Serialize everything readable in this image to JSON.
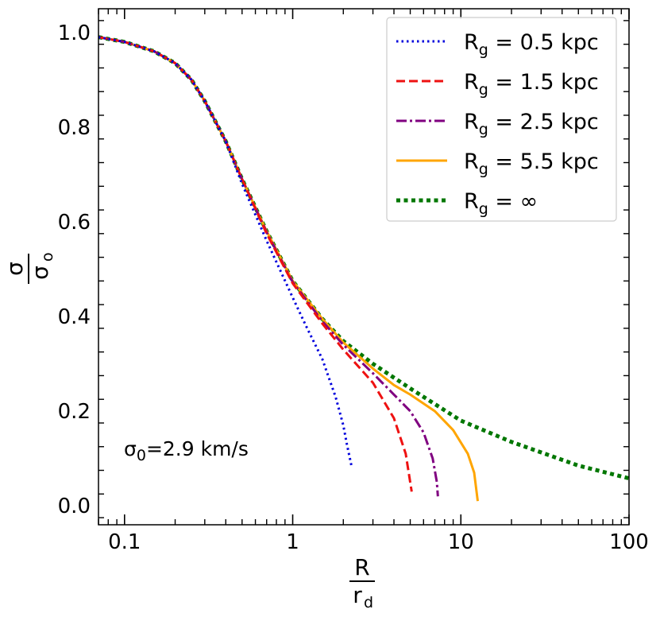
{
  "chart_data": {
    "type": "line",
    "title": "",
    "xscale": "log",
    "xlim": [
      0.07,
      100
    ],
    "ylim": [
      -0.04,
      1.05
    ],
    "xlabel": {
      "num": "R",
      "den": "r",
      "den_sub": "d"
    },
    "ylabel": {
      "num": "σ",
      "den": "σ",
      "den_sub": "o"
    },
    "xticks": [
      {
        "value": 0.1,
        "label": "0.1"
      },
      {
        "value": 1,
        "label": "1"
      },
      {
        "value": 10,
        "label": "10"
      },
      {
        "value": 100,
        "label": "100"
      }
    ],
    "yticks": [
      {
        "value": 0.0,
        "label": "0.0"
      },
      {
        "value": 0.2,
        "label": "0.2"
      },
      {
        "value": 0.4,
        "label": "0.4"
      },
      {
        "value": 0.6,
        "label": "0.6"
      },
      {
        "value": 0.8,
        "label": "0.8"
      },
      {
        "value": 1.0,
        "label": "1.0"
      }
    ],
    "legend_position": "top-right",
    "annotation": {
      "symbol": "σ",
      "sub": "0",
      "text": "=2.9 km/s"
    },
    "series": [
      {
        "name": "R_g = 0.5 kpc",
        "legend": {
          "main": "R",
          "sub": "g",
          "rest": " = 0.5 kpc"
        },
        "color": "#0000dd",
        "style": "dotted",
        "points": [
          [
            0.07,
            0.99
          ],
          [
            0.1,
            0.98
          ],
          [
            0.15,
            0.96
          ],
          [
            0.2,
            0.935
          ],
          [
            0.25,
            0.9
          ],
          [
            0.3,
            0.855
          ],
          [
            0.4,
            0.77
          ],
          [
            0.5,
            0.68
          ],
          [
            0.7,
            0.56
          ],
          [
            1.0,
            0.44
          ],
          [
            1.2,
            0.38
          ],
          [
            1.5,
            0.31
          ],
          [
            1.8,
            0.23
          ],
          [
            2.0,
            0.17
          ],
          [
            2.1,
            0.13
          ],
          [
            2.25,
            0.08
          ]
        ]
      },
      {
        "name": "R_g = 1.5 kpc",
        "legend": {
          "main": "R",
          "sub": "g",
          "rest": " = 1.5 kpc"
        },
        "color": "#ee1111",
        "style": "dashed",
        "points": [
          [
            0.07,
            0.99
          ],
          [
            0.1,
            0.98
          ],
          [
            0.15,
            0.96
          ],
          [
            0.2,
            0.935
          ],
          [
            0.25,
            0.9
          ],
          [
            0.3,
            0.855
          ],
          [
            0.4,
            0.77
          ],
          [
            0.5,
            0.69
          ],
          [
            0.7,
            0.575
          ],
          [
            1.0,
            0.47
          ],
          [
            1.5,
            0.385
          ],
          [
            2.0,
            0.33
          ],
          [
            3.0,
            0.26
          ],
          [
            4.0,
            0.185
          ],
          [
            4.7,
            0.11
          ],
          [
            5.1,
            0.03
          ]
        ]
      },
      {
        "name": "R_g = 2.5 kpc",
        "legend": {
          "main": "R",
          "sub": "g",
          "rest": " = 2.5 kpc"
        },
        "color": "#800080",
        "style": "dashdot",
        "points": [
          [
            0.07,
            0.99
          ],
          [
            0.1,
            0.98
          ],
          [
            0.15,
            0.96
          ],
          [
            0.2,
            0.935
          ],
          [
            0.25,
            0.9
          ],
          [
            0.3,
            0.855
          ],
          [
            0.4,
            0.77
          ],
          [
            0.5,
            0.69
          ],
          [
            0.7,
            0.578
          ],
          [
            1.0,
            0.473
          ],
          [
            1.5,
            0.39
          ],
          [
            2.0,
            0.34
          ],
          [
            3.0,
            0.28
          ],
          [
            4.0,
            0.235
          ],
          [
            5.0,
            0.2
          ],
          [
            6.0,
            0.155
          ],
          [
            6.8,
            0.1
          ],
          [
            7.2,
            0.05
          ],
          [
            7.3,
            0.02
          ]
        ]
      },
      {
        "name": "R_g = 5.5 kpc",
        "legend": {
          "main": "R",
          "sub": "g",
          "rest": " = 5.5 kpc"
        },
        "color": "#ffa500",
        "style": "solid",
        "points": [
          [
            0.07,
            0.99
          ],
          [
            0.1,
            0.98
          ],
          [
            0.15,
            0.96
          ],
          [
            0.2,
            0.935
          ],
          [
            0.25,
            0.9
          ],
          [
            0.3,
            0.855
          ],
          [
            0.4,
            0.77
          ],
          [
            0.5,
            0.69
          ],
          [
            0.7,
            0.58
          ],
          [
            1.0,
            0.475
          ],
          [
            1.5,
            0.395
          ],
          [
            2.0,
            0.345
          ],
          [
            3.0,
            0.29
          ],
          [
            4.0,
            0.255
          ],
          [
            5.0,
            0.235
          ],
          [
            7.0,
            0.2
          ],
          [
            9.0,
            0.16
          ],
          [
            11.0,
            0.11
          ],
          [
            12.0,
            0.07
          ],
          [
            12.6,
            0.01
          ]
        ]
      },
      {
        "name": "R_g = ∞",
        "legend": {
          "main": "R",
          "sub": "g",
          "rest": " = ∞"
        },
        "color": "#007700",
        "style": "dotted-thick",
        "points": [
          [
            0.07,
            0.99
          ],
          [
            0.1,
            0.98
          ],
          [
            0.15,
            0.96
          ],
          [
            0.2,
            0.935
          ],
          [
            0.25,
            0.9
          ],
          [
            0.3,
            0.855
          ],
          [
            0.4,
            0.77
          ],
          [
            0.5,
            0.69
          ],
          [
            0.7,
            0.58
          ],
          [
            1.0,
            0.475
          ],
          [
            1.5,
            0.395
          ],
          [
            2.0,
            0.348
          ],
          [
            3.0,
            0.3
          ],
          [
            5.0,
            0.248
          ],
          [
            10.0,
            0.18
          ],
          [
            20.0,
            0.135
          ],
          [
            50.0,
            0.085
          ],
          [
            100.0,
            0.058
          ]
        ]
      }
    ]
  }
}
